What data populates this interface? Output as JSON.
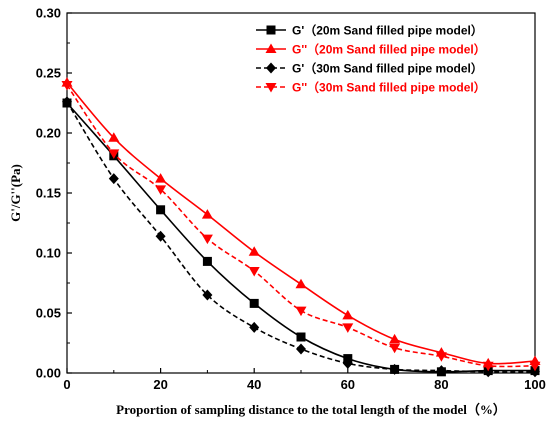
{
  "chart_data": {
    "type": "line",
    "xlabel": "Proportion of sampling distance to the total length of the model（%）",
    "ylabel": "G'/G''(Pa)",
    "xlim": [
      0,
      100
    ],
    "ylim": [
      0,
      0.3
    ],
    "xticks": [
      "0",
      "20",
      "40",
      "60",
      "80",
      "100"
    ],
    "yticks": [
      "0.00",
      "0.05",
      "0.10",
      "0.15",
      "0.20",
      "0.25",
      "0.30"
    ],
    "x": [
      0,
      10,
      20,
      30,
      40,
      50,
      60,
      70,
      80,
      90,
      100
    ],
    "grid": false,
    "legend_position": "top-right",
    "series": [
      {
        "name": "G'（20m Sand filled pipe model）",
        "values": [
          0.225,
          0.181,
          0.136,
          0.093,
          0.058,
          0.03,
          0.012,
          0.003,
          0.001,
          0.002,
          0.002
        ],
        "color": "#000000",
        "line_style": "solid",
        "marker": "square"
      },
      {
        "name": "G''（20m Sand filled pipe model）",
        "values": [
          0.242,
          0.196,
          0.162,
          0.132,
          0.101,
          0.074,
          0.048,
          0.028,
          0.017,
          0.008,
          0.01
        ],
        "color": "#ff0000",
        "line_style": "solid",
        "marker": "triangle-up"
      },
      {
        "name": "G'（30m Sand filled pipe model）",
        "values": [
          0.226,
          0.162,
          0.114,
          0.065,
          0.038,
          0.02,
          0.008,
          0.003,
          0.002,
          0.001,
          0.001
        ],
        "color": "#000000",
        "line_style": "dashed",
        "marker": "diamond"
      },
      {
        "name": "G''（30m Sand filled pipe model）",
        "values": [
          0.24,
          0.183,
          0.153,
          0.112,
          0.085,
          0.052,
          0.038,
          0.021,
          0.014,
          0.006,
          0.006
        ],
        "color": "#ff0000",
        "line_style": "dashed",
        "marker": "triangle-down"
      }
    ]
  }
}
